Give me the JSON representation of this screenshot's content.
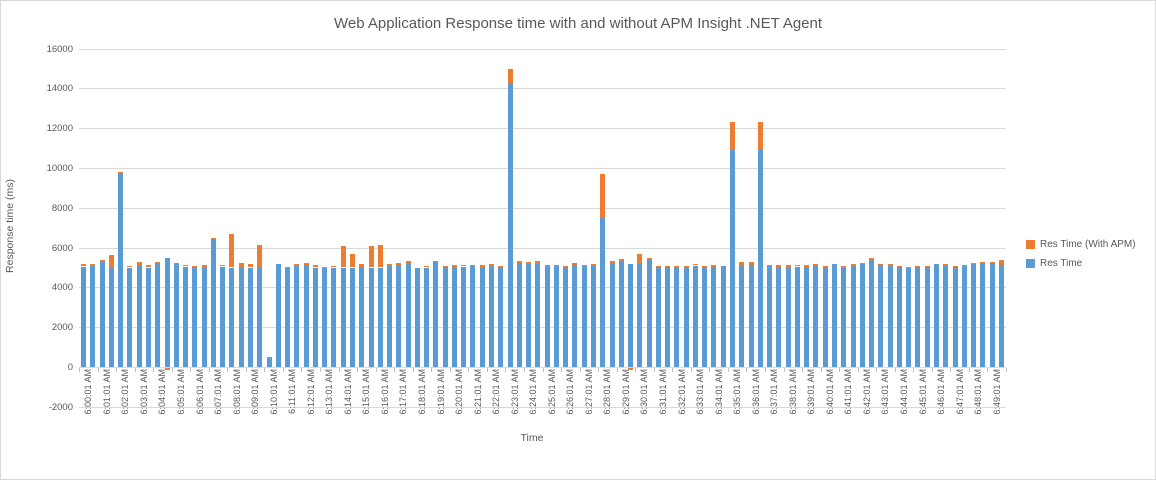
{
  "chart_data": {
    "type": "bar",
    "subtype": "overlapped-columns (orange series behind blue; orange visible where With-APM exceeds Res Time; tiny negative slivers drawn below axis)",
    "title": "Web Application Response time with and without APM Insight .NET Agent",
    "xlabel": "Time",
    "ylabel": "Response time  (ms)",
    "ylim": [
      -2000,
      16000
    ],
    "yticks": [
      -2000,
      0,
      2000,
      4000,
      6000,
      8000,
      10000,
      12000,
      14000,
      16000
    ],
    "grid": "horizontal",
    "legend_position": "right",
    "points_per_label": 2,
    "x_labels": [
      "6:00:01 AM",
      "6:01:01 AM",
      "6:02:01 AM",
      "6:03:01 AM",
      "6:04:01 AM",
      "6:05:01 AM",
      "6:06:01 AM",
      "6:07:01 AM",
      "6:08:01 AM",
      "6:09:01 AM",
      "6:10:01 AM",
      "6:11:01 AM",
      "6:12:01 AM",
      "6:13:01 AM",
      "6:14:01 AM",
      "6:15:01 AM",
      "6:16:01 AM",
      "6:17:01 AM",
      "6:18:01 AM",
      "6:19:01 AM",
      "6:20:01 AM",
      "6:21:01 AM",
      "6:22:01 AM",
      "6:23:01 AM",
      "6:24:01 AM",
      "6:25:01 AM",
      "6:26:01 AM",
      "6:27:01 AM",
      "6:28:01 AM",
      "6:29:01 AM",
      "6:30:01 AM",
      "6:31:01 AM",
      "6:32:01 AM",
      "6:33:01 AM",
      "6:34:01 AM",
      "6:35:01 AM",
      "6:36:01 AM",
      "6:37:01 AM",
      "6:38:01 AM",
      "6:39:01 AM",
      "6:40:01 AM",
      "6:41:01 AM",
      "6:42:01 AM",
      "6:43:01 AM",
      "6:44:01 AM",
      "6:45:01 AM",
      "6:46:01 AM",
      "6:47:01 AM",
      "6:48:01 AM",
      "6:49:01 AM"
    ],
    "series": [
      {
        "name": "Res Time (With APM)",
        "color": "#ED7D31",
        "values": [
          5180,
          5200,
          5390,
          5630,
          9820,
          5100,
          5280,
          5120,
          5290,
          5370,
          5230,
          5110,
          5090,
          5110,
          6460,
          5130,
          6670,
          5210,
          5170,
          6130,
          490,
          5180,
          5010,
          5160,
          5230,
          5110,
          5010,
          5090,
          6080,
          5700,
          5170,
          6090,
          6130,
          5200,
          5230,
          5310,
          5000,
          5060,
          5330,
          5090,
          5110,
          5130,
          5140,
          5110,
          5180,
          5090,
          14960,
          5340,
          5280,
          5340,
          5110,
          5130,
          5070,
          5230,
          5140,
          5180,
          9700,
          5340,
          5430,
          5080,
          5670,
          5480,
          5080,
          5090,
          5090,
          5090,
          5180,
          5100,
          5120,
          5090,
          12320,
          5290,
          5300,
          12320,
          5120,
          5110,
          5110,
          5150,
          5110,
          5200,
          5090,
          5180,
          5060,
          5180,
          5220,
          5470,
          5170,
          5160,
          5080,
          5040,
          5080,
          5070,
          5180,
          5170,
          5080,
          5120,
          5220,
          5290,
          5270,
          5370
        ]
      },
      {
        "name": "Res Time",
        "color": "#5B9BD5",
        "values": [
          5050,
          5080,
          5330,
          5030,
          9750,
          5000,
          5120,
          5000,
          5220,
          5470,
          5170,
          5050,
          5030,
          5030,
          6420,
          5050,
          5000,
          5030,
          5000,
          5030,
          430,
          5170,
          4970,
          5100,
          5150,
          5000,
          4970,
          5000,
          5000,
          5000,
          5030,
          5000,
          5000,
          5080,
          5120,
          5220,
          4980,
          5000,
          5280,
          5030,
          5030,
          5050,
          5070,
          5030,
          5070,
          5020,
          14290,
          5250,
          5170,
          5170,
          5100,
          5070,
          5030,
          5130,
          5070,
          5080,
          7500,
          5200,
          5330,
          5180,
          5250,
          5370,
          5030,
          5030,
          5030,
          5030,
          5100,
          5030,
          5050,
          5080,
          10900,
          5150,
          5130,
          10900,
          5070,
          5030,
          5030,
          5050,
          5030,
          5080,
          5030,
          5170,
          4970,
          5070,
          5170,
          5370,
          5130,
          5080,
          5030,
          5000,
          5030,
          5030,
          5170,
          5100,
          5030,
          5080,
          5170,
          5230,
          5220,
          5120
        ]
      }
    ],
    "colors": {
      "grid": "#D9D9D9",
      "text": "#595959",
      "tick": "#BFBFBF"
    }
  }
}
